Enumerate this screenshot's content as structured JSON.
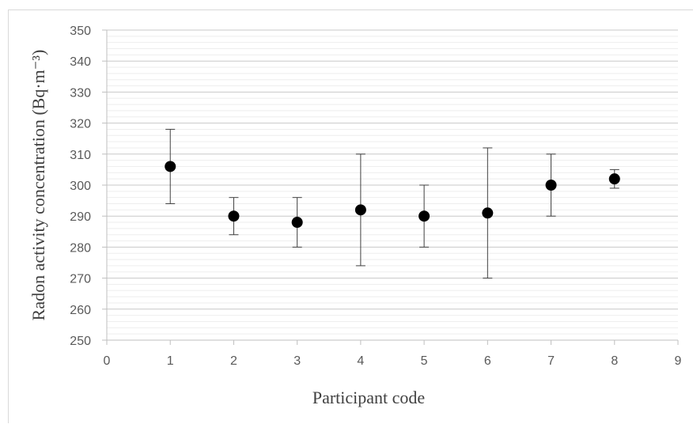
{
  "chart_data": {
    "type": "scatter",
    "title": "",
    "xlabel": "Participant code",
    "ylabel": "Radon activity concentration (Bq·m⁻³)",
    "xlim": [
      0,
      9
    ],
    "ylim": [
      250,
      350
    ],
    "x_ticks": [
      0,
      1,
      2,
      3,
      4,
      5,
      6,
      7,
      8,
      9
    ],
    "y_ticks": [
      250,
      260,
      270,
      280,
      290,
      300,
      310,
      320,
      330,
      340,
      350
    ],
    "y_minor_step": 2,
    "grid": true,
    "legend": "none",
    "marker_color": "#000000",
    "points": [
      {
        "x": 1,
        "y": 306,
        "err_low": 294,
        "err_high": 318
      },
      {
        "x": 2,
        "y": 290,
        "err_low": 284,
        "err_high": 296
      },
      {
        "x": 3,
        "y": 288,
        "err_low": 280,
        "err_high": 296
      },
      {
        "x": 4,
        "y": 292,
        "err_low": 274,
        "err_high": 310
      },
      {
        "x": 5,
        "y": 290,
        "err_low": 280,
        "err_high": 300
      },
      {
        "x": 6,
        "y": 291,
        "err_low": 270,
        "err_high": 312
      },
      {
        "x": 7,
        "y": 300,
        "err_low": 290,
        "err_high": 310
      },
      {
        "x": 8,
        "y": 302,
        "err_low": 299,
        "err_high": 305
      }
    ]
  }
}
